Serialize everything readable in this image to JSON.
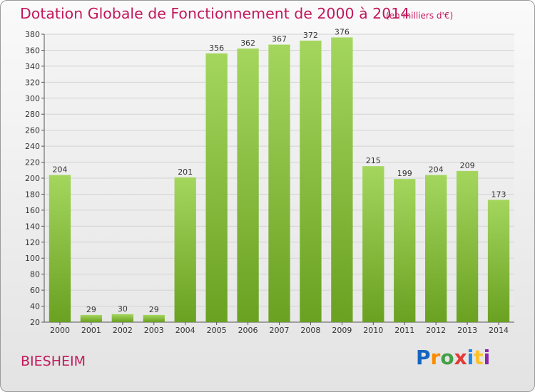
{
  "header": {
    "title": "Dotation Globale de Fonctionnement de 2000 à 2014",
    "unit_note": "(en milliers d'€)"
  },
  "footer": {
    "place": "BIESHEIM",
    "logo_text": "Proxiti"
  },
  "colors": {
    "title": "#c2185b",
    "bar_light": "#a4d65e",
    "bar_dark": "#6aa121",
    "grid": "#d3d3d3"
  },
  "chart_data": {
    "type": "bar",
    "categories": [
      "2000",
      "2001",
      "2002",
      "2003",
      "2004",
      "2005",
      "2006",
      "2007",
      "2008",
      "2009",
      "2010",
      "2011",
      "2012",
      "2013",
      "2014"
    ],
    "values": [
      204,
      29,
      30,
      29,
      201,
      356,
      362,
      367,
      372,
      376,
      215,
      199,
      204,
      209,
      173
    ],
    "title": "Dotation Globale de Fonctionnement de 2000 à 2014",
    "subtitle": "(en milliers d'€)",
    "ylim": [
      20,
      380
    ],
    "ytick_step": 20,
    "grid": true,
    "data_labels": true
  }
}
